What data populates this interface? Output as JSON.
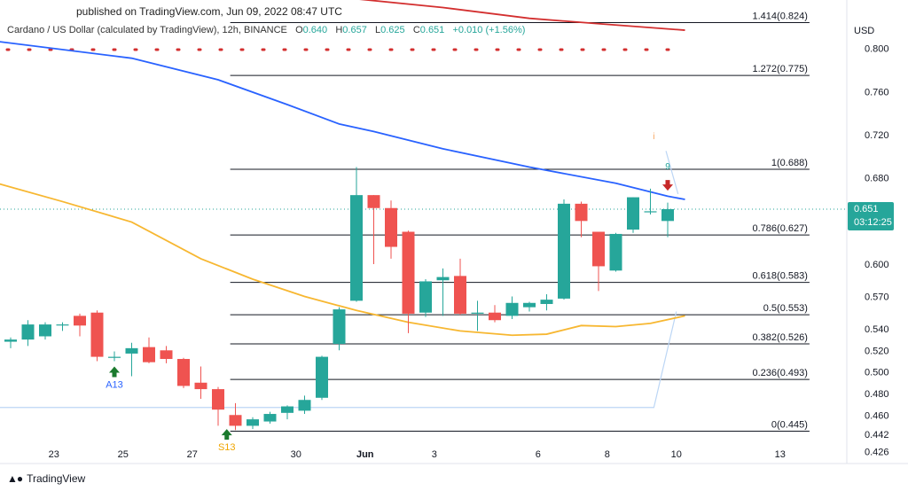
{
  "header": {
    "published": "published on TradingView.com, Jun 09, 2022 08:47 UTC"
  },
  "legend": {
    "symbol": "Cardano / US Dollar (calculated by TradingView), 12h, BINANCE",
    "open_label": "O",
    "open": "0.640",
    "high_label": "H",
    "high": "0.657",
    "low_label": "L",
    "low": "0.625",
    "close_label": "C",
    "close": "0.651",
    "change": "+0.010 (+1.56%)"
  },
  "footer": {
    "brand": "TradingView"
  },
  "colors": {
    "up": "#26a69a",
    "down": "#ef5350",
    "blue_ma": "#2962ff",
    "yellow_ma": "#f7b731",
    "red_ma": "#d32f2f",
    "fib": "#131722",
    "price_tag": "#26a69a",
    "last_price_line": "#26a69a"
  },
  "chart_data": {
    "type": "candlestick",
    "currency": "USD",
    "ylim": [
      0.415,
      0.845
    ],
    "y_ticks": [
      0.8,
      0.76,
      0.72,
      0.68,
      0.6,
      0.57,
      0.54,
      0.52,
      0.5,
      0.48,
      0.46,
      0.442,
      0.426
    ],
    "x_ticks": [
      {
        "label": "23",
        "i": 2.5
      },
      {
        "label": "25",
        "i": 6.5
      },
      {
        "label": "27",
        "i": 10.5
      },
      {
        "label": "30",
        "i": 16.5
      },
      {
        "label": "Jun",
        "i": 20.5
      },
      {
        "label": "3",
        "i": 24.5
      },
      {
        "label": "6",
        "i": 30.5
      },
      {
        "label": "8",
        "i": 34.5
      },
      {
        "label": "10",
        "i": 38.5
      },
      {
        "label": "13",
        "i": 44.5
      }
    ],
    "candles": [
      [
        0.528,
        0.532,
        0.522,
        0.53
      ],
      [
        0.53,
        0.548,
        0.524,
        0.544
      ],
      [
        0.533,
        0.546,
        0.53,
        0.544
      ],
      [
        0.544,
        0.546,
        0.538,
        0.544
      ],
      [
        0.552,
        0.554,
        0.533,
        0.543
      ],
      [
        0.555,
        0.557,
        0.51,
        0.514
      ],
      [
        0.514,
        0.519,
        0.51,
        0.514
      ],
      [
        0.517,
        0.527,
        0.496,
        0.522
      ],
      [
        0.523,
        0.532,
        0.508,
        0.509
      ],
      [
        0.52,
        0.524,
        0.508,
        0.512
      ],
      [
        0.512,
        0.513,
        0.485,
        0.487
      ],
      [
        0.49,
        0.505,
        0.475,
        0.484
      ],
      [
        0.484,
        0.486,
        0.45,
        0.465
      ],
      [
        0.46,
        0.471,
        0.446,
        0.45
      ],
      [
        0.45,
        0.458,
        0.447,
        0.456
      ],
      [
        0.454,
        0.463,
        0.452,
        0.461
      ],
      [
        0.462,
        0.469,
        0.456,
        0.468
      ],
      [
        0.464,
        0.478,
        0.461,
        0.474
      ],
      [
        0.476,
        0.515,
        0.474,
        0.514
      ],
      [
        0.526,
        0.56,
        0.52,
        0.558
      ],
      [
        0.566,
        0.69,
        0.565,
        0.664
      ],
      [
        0.664,
        0.664,
        0.6,
        0.652
      ],
      [
        0.652,
        0.659,
        0.605,
        0.616
      ],
      [
        0.63,
        0.631,
        0.536,
        0.554
      ],
      [
        0.555,
        0.586,
        0.551,
        0.584
      ],
      [
        0.585,
        0.596,
        0.552,
        0.588
      ],
      [
        0.589,
        0.605,
        0.553,
        0.554
      ],
      [
        0.554,
        0.566,
        0.538,
        0.555
      ],
      [
        0.555,
        0.562,
        0.546,
        0.548
      ],
      [
        0.552,
        0.57,
        0.549,
        0.564
      ],
      [
        0.56,
        0.565,
        0.556,
        0.564
      ],
      [
        0.563,
        0.572,
        0.557,
        0.567
      ],
      [
        0.568,
        0.66,
        0.567,
        0.656
      ],
      [
        0.656,
        0.658,
        0.625,
        0.64
      ],
      [
        0.63,
        0.63,
        0.575,
        0.598
      ],
      [
        0.594,
        0.629,
        0.593,
        0.628
      ],
      [
        0.632,
        0.662,
        0.629,
        0.662
      ],
      [
        0.649,
        0.67,
        0.646,
        0.649
      ],
      [
        0.64,
        0.657,
        0.625,
        0.651
      ]
    ],
    "moving_averages": [
      {
        "name": "MA-blue",
        "color": "#2962ff",
        "points": [
          [
            -1,
            0.807
          ],
          [
            7,
            0.791
          ],
          [
            12,
            0.771
          ],
          [
            16,
            0.748
          ],
          [
            19,
            0.73
          ],
          [
            21,
            0.723
          ],
          [
            25,
            0.707
          ],
          [
            30,
            0.69
          ],
          [
            35,
            0.675
          ],
          [
            38,
            0.663
          ],
          [
            39,
            0.66
          ]
        ]
      },
      {
        "name": "MA-yellow",
        "color": "#f7b731",
        "points": [
          [
            -1,
            0.676
          ],
          [
            3,
            0.658
          ],
          [
            7,
            0.639
          ],
          [
            11,
            0.605
          ],
          [
            14,
            0.586
          ],
          [
            17,
            0.57
          ],
          [
            20,
            0.557
          ],
          [
            23,
            0.546
          ],
          [
            26,
            0.538
          ],
          [
            29,
            0.534
          ],
          [
            31,
            0.535
          ],
          [
            33,
            0.543
          ],
          [
            35,
            0.542
          ],
          [
            37,
            0.545
          ],
          [
            39,
            0.552
          ]
        ]
      },
      {
        "name": "MA-red",
        "color": "#d32f2f",
        "points": [
          [
            16,
            0.852
          ],
          [
            20,
            0.846
          ],
          [
            25,
            0.838
          ],
          [
            30,
            0.828
          ],
          [
            34,
            0.823
          ],
          [
            39,
            0.817
          ]
        ]
      }
    ],
    "red_dotted_level": 0.799,
    "light_line": [
      [
        -1,
        0.467
      ],
      [
        37.2,
        0.467
      ],
      [
        38.5,
        0.556
      ]
    ],
    "light_line_top": [
      [
        37.9,
        0.705
      ],
      [
        38.6,
        0.665
      ]
    ],
    "fib_start_i": 12.7,
    "fib_end_i": 46.2,
    "fib_levels": [
      {
        "label": "1.414(0.824)",
        "value": 0.824
      },
      {
        "label": "1.272(0.775)",
        "value": 0.775
      },
      {
        "label": "1(0.688)",
        "value": 0.688
      },
      {
        "label": "0.786(0.627)",
        "value": 0.627
      },
      {
        "label": "0.618(0.583)",
        "value": 0.583
      },
      {
        "label": "0.5(0.553)",
        "value": 0.553
      },
      {
        "label": "0.382(0.526)",
        "value": 0.526
      },
      {
        "label": "0.236(0.493)",
        "value": 0.493
      },
      {
        "label": "0(0.445)",
        "value": 0.445
      }
    ],
    "last_price": 0.651,
    "price_tag": {
      "price": "0.651",
      "countdown": "03:12:25"
    },
    "markers": [
      {
        "kind": "up-arrow",
        "i": 6,
        "value": 0.505,
        "label": "A13",
        "label_color": "#2962ff",
        "color": "#1b7a2e"
      },
      {
        "kind": "up-arrow",
        "i": 12.5,
        "value": 0.447,
        "label": "S13",
        "label_color": "#f0a500",
        "color": "#1b7a2e"
      },
      {
        "kind": "down-arrow",
        "i": 38,
        "value": 0.678,
        "label": "9",
        "label_color": "#26a69a",
        "color": "#c62828"
      },
      {
        "kind": "tick",
        "i": 37.2,
        "value": 0.715,
        "label": "i",
        "label_color": "#f7a35c",
        "color": "#f7a35c"
      }
    ]
  }
}
